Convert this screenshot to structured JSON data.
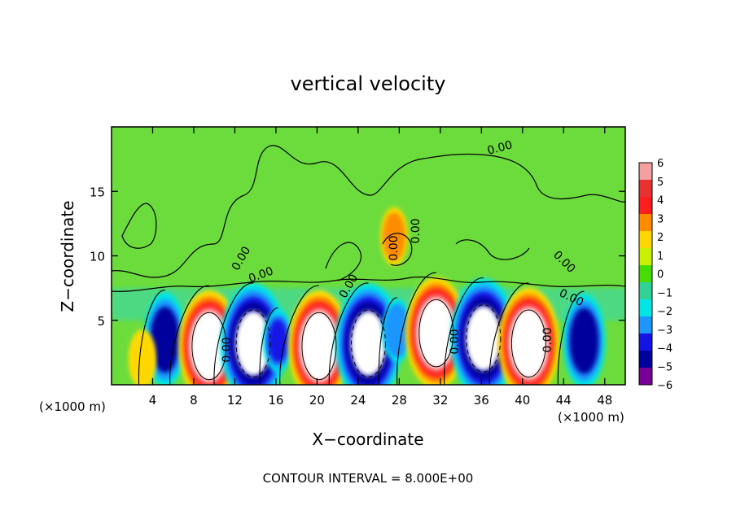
{
  "chart_data": {
    "type": "heatmap",
    "title": "vertical velocity",
    "xlabel": "X−coordinate",
    "ylabel": "Z−coordinate",
    "x_unit_left": "(×1000 m)",
    "x_unit_right": "(×1000 m)",
    "xlim": [
      0,
      50
    ],
    "ylim": [
      0,
      20
    ],
    "x_ticks": [
      4,
      8,
      12,
      16,
      20,
      24,
      28,
      32,
      36,
      40,
      44,
      48
    ],
    "y_ticks": [
      5,
      10,
      15
    ],
    "colorbar": {
      "levels": [
        6,
        5,
        4,
        3,
        2,
        1,
        0,
        -1,
        -2,
        -3,
        -4,
        -5,
        -6
      ],
      "colors": [
        "#f4a0a0",
        "#e83232",
        "#ff1e1e",
        "#ff8c00",
        "#ffd700",
        "#c8f000",
        "#46dc00",
        "#32d296",
        "#00e6e6",
        "#1e96ff",
        "#1414e6",
        "#00009c",
        "#780096"
      ]
    },
    "contour_labels": [
      "0.00",
      "0.00",
      "0.00",
      "0.00",
      "0.00",
      "0.00",
      "0.00",
      "0.00",
      "0.00",
      "0.00",
      "0.00",
      "0.00",
      "0.00",
      "0.00"
    ],
    "cells": [
      {
        "x": 5.2,
        "z": 3.5,
        "w": -5.0
      },
      {
        "x": 9.5,
        "z": 3.0,
        "w": 6.0
      },
      {
        "x": 13.8,
        "z": 3.2,
        "w": -6.0
      },
      {
        "x": 16.2,
        "z": 3.4,
        "w": -4.0
      },
      {
        "x": 20.2,
        "z": 3.0,
        "w": 6.0
      },
      {
        "x": 25.0,
        "z": 3.2,
        "w": -6.0
      },
      {
        "x": 27.8,
        "z": 4.2,
        "w": -3.0
      },
      {
        "x": 31.6,
        "z": 4.0,
        "w": 6.0
      },
      {
        "x": 36.2,
        "z": 3.6,
        "w": -6.0
      },
      {
        "x": 40.6,
        "z": 3.2,
        "w": 6.0
      },
      {
        "x": 46.0,
        "z": 3.4,
        "w": -5.0
      },
      {
        "x": 27.5,
        "z": 11.5,
        "w": 3.0
      },
      {
        "x": 3.0,
        "z": 2.0,
        "w": 2.0
      }
    ],
    "footer": "CONTOUR INTERVAL = 8.000E+00"
  }
}
